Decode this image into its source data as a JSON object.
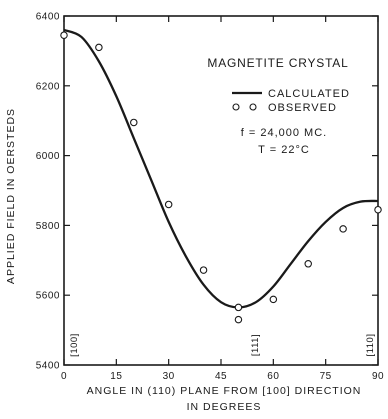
{
  "chart_data": {
    "type": "scatter",
    "title": "MAGNETITE CRYSTAL",
    "xlabel_line1": "ANGLE IN (110) PLANE FROM [100] DIRECTION",
    "xlabel_line2": "IN DEGREES",
    "ylabel": "APPLIED FIELD IN OERSTEDS",
    "xlim": [
      0,
      90
    ],
    "ylim": [
      5400,
      6400
    ],
    "xticks": [
      0,
      15,
      30,
      45,
      60,
      75,
      90
    ],
    "yticks": [
      5400,
      5600,
      5800,
      6000,
      6200,
      6400
    ],
    "grid": false,
    "legend_position": "top-right",
    "conditions": [
      "f = 24,000 MC.",
      "T = 22°C"
    ],
    "direction_labels": [
      {
        "label": "[100]",
        "x": 0
      },
      {
        "label": "[111]",
        "x": 54.7
      },
      {
        "label": "[110]",
        "x": 90
      }
    ],
    "series": [
      {
        "name": "CALCULATED",
        "style": "line",
        "x": [
          0,
          5,
          10,
          15,
          20,
          25,
          30,
          35,
          40,
          45,
          50,
          55,
          60,
          65,
          70,
          75,
          80,
          85,
          90
        ],
        "y": [
          6360,
          6340,
          6270,
          6170,
          6050,
          5930,
          5810,
          5710,
          5630,
          5580,
          5565,
          5580,
          5625,
          5690,
          5755,
          5810,
          5850,
          5868,
          5870
        ]
      },
      {
        "name": "OBSERVED",
        "style": "markers",
        "x": [
          0,
          10,
          20,
          30,
          40,
          50,
          50,
          60,
          70,
          80,
          90
        ],
        "y": [
          6345,
          6310,
          6095,
          5860,
          5672,
          5565,
          5530,
          5588,
          5690,
          5790,
          5845
        ]
      }
    ]
  }
}
